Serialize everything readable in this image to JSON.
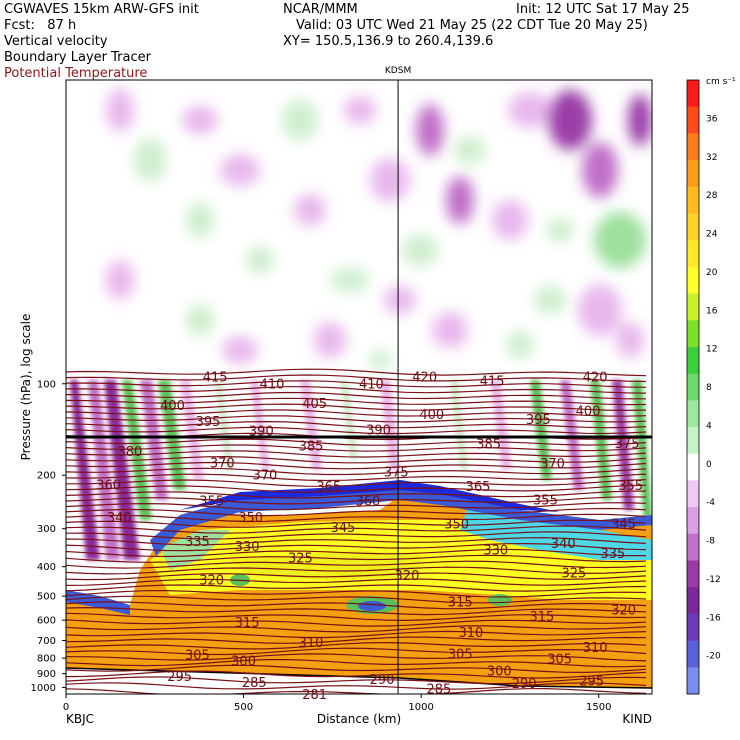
{
  "header": {
    "model": "CGWAVES 15km ARW-GFS init",
    "fcst": "Fcst:   87 h",
    "org": "NCAR/MMM",
    "init": "Init: 12 UTC Sat 17 May 25",
    "valid": "Valid: 03 UTC Wed 21 May 25 (22 CDT Tue 20 May 25)",
    "xy": "XY= 150.5,136.9 to 260.4,139.6",
    "field1": "Vertical velocity",
    "field2": "Boundary Layer Tracer",
    "field3": "Potential Temperature",
    "field3_color": "#8b1a1a"
  },
  "chart_data": {
    "type": "heatmap",
    "title": "Vertical velocity",
    "xlabel": "Distance (km)",
    "ylabel": "Pressure (hPa), log scale",
    "xlim": [
      0,
      1650
    ],
    "ylim": [
      1050,
      10
    ],
    "y_scale": "log",
    "x_ticks": [
      0,
      500,
      1000,
      1500
    ],
    "y_ticks": [
      100,
      200,
      300,
      400,
      500,
      600,
      700,
      800,
      900,
      1000
    ],
    "station_left": "KBJC",
    "station_mid": "KDSM",
    "station_mid_x": 935,
    "station_right": "KIND",
    "colorbar": {
      "unit": "cm s⁻¹",
      "ticks": [
        36,
        32,
        28,
        24,
        20,
        16,
        12,
        8,
        4,
        0,
        -4,
        -8,
        -12,
        -16,
        -20
      ]
    },
    "theta_labels": [
      {
        "text": "415",
        "x": 420,
        "p": 95
      },
      {
        "text": "410",
        "x": 580,
        "p": 100
      },
      {
        "text": "410",
        "x": 860,
        "p": 100
      },
      {
        "text": "420",
        "x": 1010,
        "p": 95
      },
      {
        "text": "415",
        "x": 1200,
        "p": 98
      },
      {
        "text": "420",
        "x": 1490,
        "p": 95
      },
      {
        "text": "400",
        "x": 300,
        "p": 118
      },
      {
        "text": "405",
        "x": 700,
        "p": 116
      },
      {
        "text": "400",
        "x": 1030,
        "p": 126
      },
      {
        "text": "395",
        "x": 400,
        "p": 133
      },
      {
        "text": "390",
        "x": 550,
        "p": 143
      },
      {
        "text": "390",
        "x": 880,
        "p": 142
      },
      {
        "text": "395",
        "x": 1330,
        "p": 131
      },
      {
        "text": "400",
        "x": 1470,
        "p": 123
      },
      {
        "text": "385",
        "x": 690,
        "p": 160
      },
      {
        "text": "385",
        "x": 1190,
        "p": 158
      },
      {
        "text": "375",
        "x": 1580,
        "p": 157
      },
      {
        "text": "380",
        "x": 180,
        "p": 167
      },
      {
        "text": "370",
        "x": 440,
        "p": 182
      },
      {
        "text": "370",
        "x": 560,
        "p": 200
      },
      {
        "text": "375",
        "x": 930,
        "p": 195
      },
      {
        "text": "370",
        "x": 1370,
        "p": 183
      },
      {
        "text": "360",
        "x": 120,
        "p": 215
      },
      {
        "text": "365",
        "x": 740,
        "p": 218
      },
      {
        "text": "365",
        "x": 1160,
        "p": 218
      },
      {
        "text": "355",
        "x": 1590,
        "p": 216
      },
      {
        "text": "355",
        "x": 410,
        "p": 243
      },
      {
        "text": "360",
        "x": 850,
        "p": 243
      },
      {
        "text": "355",
        "x": 1350,
        "p": 241
      },
      {
        "text": "340",
        "x": 150,
        "p": 276
      },
      {
        "text": "350",
        "x": 520,
        "p": 276
      },
      {
        "text": "350",
        "x": 1100,
        "p": 290
      },
      {
        "text": "345",
        "x": 1570,
        "p": 290
      },
      {
        "text": "345",
        "x": 780,
        "p": 297
      },
      {
        "text": "335",
        "x": 370,
        "p": 331
      },
      {
        "text": "340",
        "x": 1400,
        "p": 336
      },
      {
        "text": "330",
        "x": 510,
        "p": 343
      },
      {
        "text": "330",
        "x": 1210,
        "p": 352
      },
      {
        "text": "335",
        "x": 1540,
        "p": 362
      },
      {
        "text": "325",
        "x": 660,
        "p": 374
      },
      {
        "text": "325",
        "x": 1430,
        "p": 420
      },
      {
        "text": "320",
        "x": 410,
        "p": 442
      },
      {
        "text": "320",
        "x": 960,
        "p": 427
      },
      {
        "text": "315",
        "x": 1110,
        "p": 523
      },
      {
        "text": "320",
        "x": 1570,
        "p": 555
      },
      {
        "text": "315",
        "x": 510,
        "p": 610
      },
      {
        "text": "315",
        "x": 1340,
        "p": 584
      },
      {
        "text": "310",
        "x": 1140,
        "p": 660
      },
      {
        "text": "310",
        "x": 690,
        "p": 711
      },
      {
        "text": "310",
        "x": 1490,
        "p": 739
      },
      {
        "text": "305",
        "x": 370,
        "p": 782
      },
      {
        "text": "300",
        "x": 500,
        "p": 818
      },
      {
        "text": "305",
        "x": 1110,
        "p": 775
      },
      {
        "text": "305",
        "x": 1390,
        "p": 806
      },
      {
        "text": "300",
        "x": 1220,
        "p": 883
      },
      {
        "text": "295",
        "x": 320,
        "p": 920
      },
      {
        "text": "285",
        "x": 530,
        "p": 961
      },
      {
        "text": "290",
        "x": 890,
        "p": 942
      },
      {
        "text": "290",
        "x": 1290,
        "p": 968
      },
      {
        "text": "295",
        "x": 1480,
        "p": 952
      },
      {
        "text": "285",
        "x": 1050,
        "p": 1010
      },
      {
        "text": "281",
        "x": 700,
        "p": 1053
      }
    ]
  }
}
